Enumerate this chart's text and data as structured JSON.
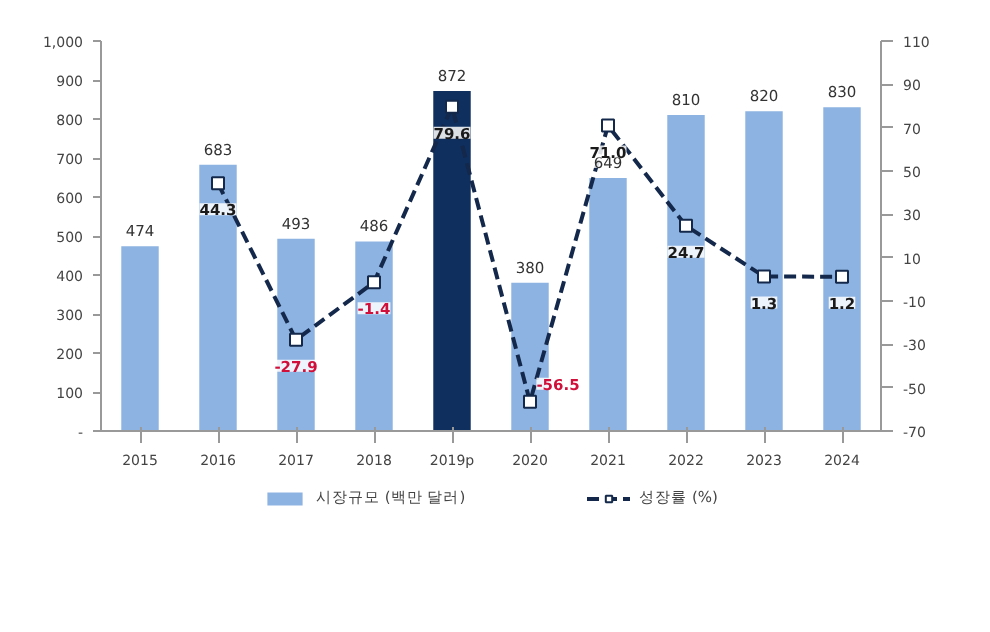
{
  "chart_data": {
    "type": "bar",
    "categories": [
      "2015",
      "2016",
      "2017",
      "2018",
      "2019p",
      "2020",
      "2021",
      "2022",
      "2023",
      "2024"
    ],
    "series": [
      {
        "name": "시장규모 (백만 달러)",
        "colors": [
          "#8db3e2",
          "#8db3e2",
          "#8db3e2",
          "#8db3e2",
          "#0f2f5f",
          "#8db3e2",
          "#8db3e2",
          "#8db3e2",
          "#8db3e2",
          "#8db3e2"
        ],
        "color": "#8db3e2",
        "values": [
          474,
          683,
          493,
          486,
          872,
          380,
          649,
          810,
          820,
          830
        ]
      },
      {
        "name": "성장률 (%)",
        "type": "line",
        "axis": "y2",
        "color": "#13284a",
        "marker": "square",
        "line_style": "dashed",
        "values": [
          null,
          44.3,
          -27.9,
          -1.4,
          79.6,
          -56.5,
          71.0,
          24.7,
          1.3,
          1.2
        ],
        "value_labels": [
          null,
          "44.3",
          "-27.9",
          "-1.4",
          "79.6",
          "-56.5",
          "71.0",
          "24.7",
          "1.3",
          "1.2"
        ]
      }
    ],
    "data_labels": true,
    "ylim": [
      0,
      1000
    ],
    "yticks": [
      {
        "value": 0,
        "label": "-"
      },
      100,
      200,
      300,
      400,
      500,
      600,
      700,
      800,
      900,
      {
        "value": 1000,
        "label": "1,000"
      }
    ],
    "y2lim": [
      -70,
      110
    ],
    "y2ticks": [
      -70,
      -50,
      -30,
      -10,
      10,
      30,
      50,
      70,
      90,
      110
    ],
    "grid": false,
    "legend": "bottom"
  }
}
